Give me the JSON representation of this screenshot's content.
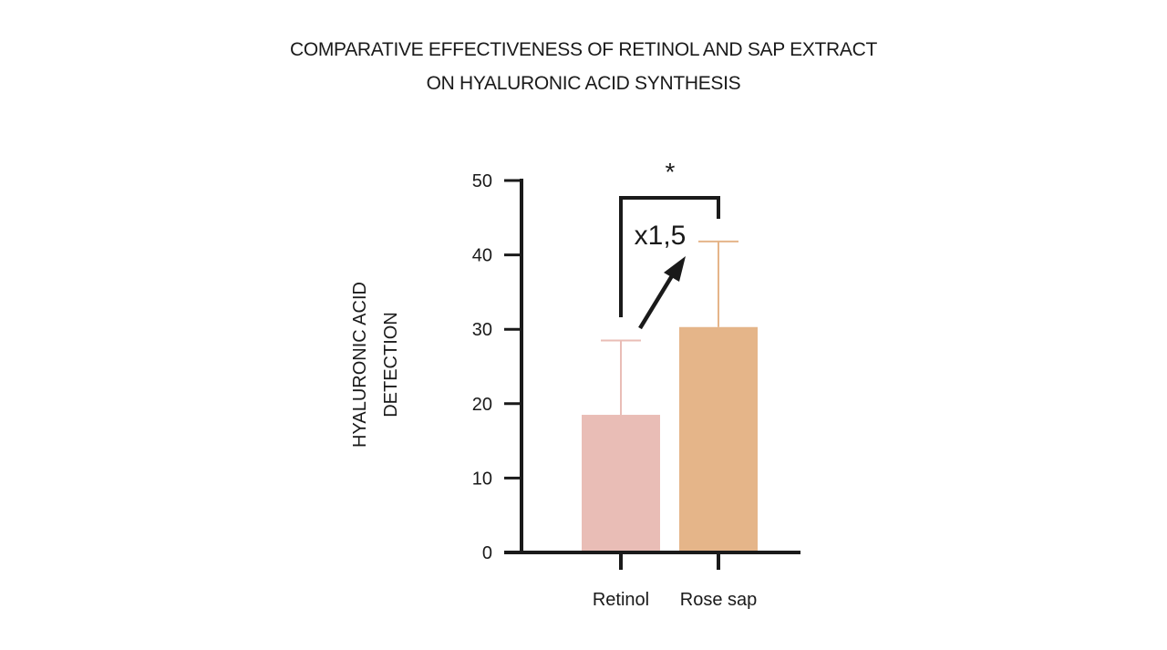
{
  "chart_data": {
    "type": "bar",
    "title_lines": [
      "COMPARATIVE EFFECTIVENESS OF RETINOL AND SAP EXTRACT",
      "ON HYALURONIC ACID SYNTHESIS"
    ],
    "ylabel_lines": [
      "HYALURONIC ACID",
      "DETECTION"
    ],
    "xlabel": "",
    "categories": [
      "Retinol",
      "Rose sap"
    ],
    "values": [
      18.5,
      30.3
    ],
    "error_upper": [
      28.5,
      41.8
    ],
    "ylim": [
      0,
      50
    ],
    "yticks": [
      0,
      10,
      20,
      30,
      40,
      50
    ],
    "colors": [
      "#e9bdb6",
      "#e5b589"
    ],
    "significance": "*",
    "ratio_annotation": "x1,5",
    "grid": false,
    "legend": "none"
  }
}
